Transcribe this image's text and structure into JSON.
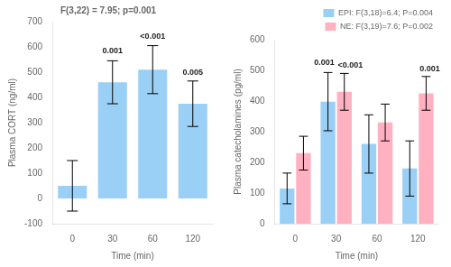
{
  "chart_data": [
    {
      "type": "bar",
      "subtitle": "F(3,22) = 7.95; p=0.001",
      "categories": [
        "0",
        "30",
        "60",
        "120"
      ],
      "values": [
        50,
        460,
        510,
        375
      ],
      "errors": [
        100,
        85,
        95,
        90
      ],
      "xlabel": "Time (min)",
      "ylabel": "Plasma CORT (ng/ml)",
      "ylim": [
        -100,
        700
      ],
      "yticks": [
        -100,
        0,
        100,
        200,
        300,
        400,
        500,
        600,
        700
      ],
      "grid": false,
      "annotations": [
        {
          "text": "0.001",
          "x": "30",
          "y": 565
        },
        {
          "text": "<0.001",
          "x": "60",
          "y": 620
        },
        {
          "text": "0.005",
          "x": "120",
          "y": 480
        }
      ]
    },
    {
      "type": "bar",
      "categories": [
        "0",
        "30",
        "60",
        "120"
      ],
      "series": [
        {
          "name": "EPI: F(3,18)=6.4; P=0.004",
          "values": [
            115,
            398,
            260,
            180
          ],
          "errors": [
            50,
            95,
            95,
            90
          ]
        },
        {
          "name": "NE: F(3,19)=7.6; P=0.002",
          "values": [
            230,
            430,
            330,
            425
          ],
          "errors": [
            55,
            60,
            60,
            55
          ]
        }
      ],
      "xlabel": "Time (min)",
      "ylabel": "Plasma catecholamines (pg/ml)",
      "ylim": [
        0,
        600
      ],
      "yticks": [
        0,
        100,
        200,
        300,
        400,
        500,
        600
      ],
      "grid": false,
      "legend": "upper right",
      "annotations": [
        {
          "text": "0.001",
          "x": "30",
          "series": "EPI: F(3,18)=6.4; P=0.004",
          "y": 510
        },
        {
          "text": "<0.001",
          "x": "30",
          "series": "NE: F(3,19)=7.6; P=0.002",
          "y": 500
        },
        {
          "text": "0.001",
          "x": "120",
          "series": "NE: F(3,19)=7.6; P=0.002",
          "y": 488
        }
      ]
    }
  ]
}
